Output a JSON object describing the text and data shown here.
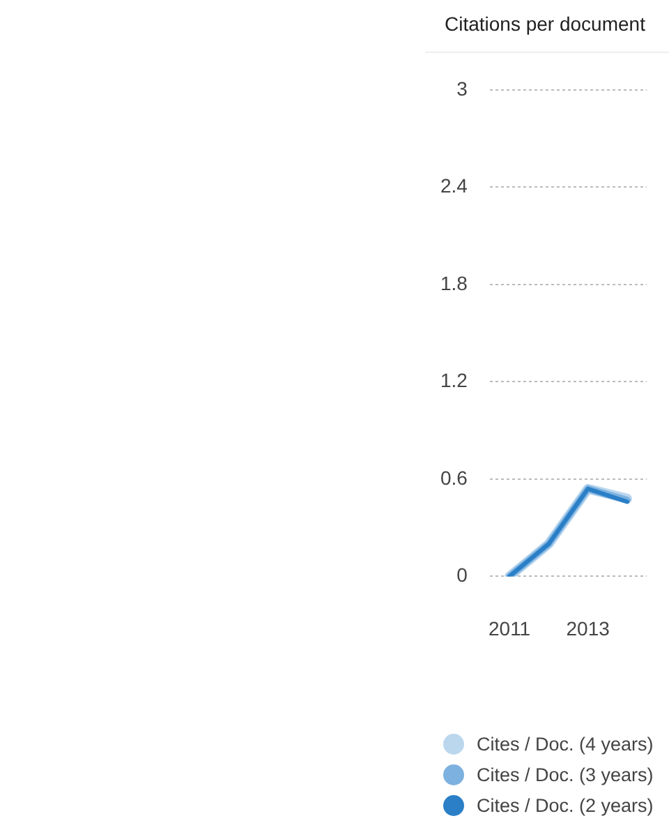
{
  "chart_data": {
    "type": "line",
    "title": "Citations per document",
    "categories": [
      "2011",
      null,
      "2013",
      null
    ],
    "series": [
      {
        "name": "Cites / Doc. (4 years)",
        "color": "#bbd7ee",
        "values": [
          0,
          0.2,
          0.54,
          0.48
        ]
      },
      {
        "name": "Cites / Doc. (3 years)",
        "color": "#7cb1e0",
        "values": [
          0,
          0.2,
          0.54,
          0.47
        ]
      },
      {
        "name": "Cites / Doc. (2 years)",
        "color": "#2a7fc7",
        "values": [
          0,
          0.2,
          0.54,
          0.46
        ]
      }
    ],
    "ylim": [
      0,
      3
    ],
    "yticks": [
      0,
      0.6,
      1.2,
      1.8,
      2.4,
      3
    ],
    "grid": "y",
    "legend": "bottom",
    "marker": "none",
    "line_style": "solid"
  }
}
